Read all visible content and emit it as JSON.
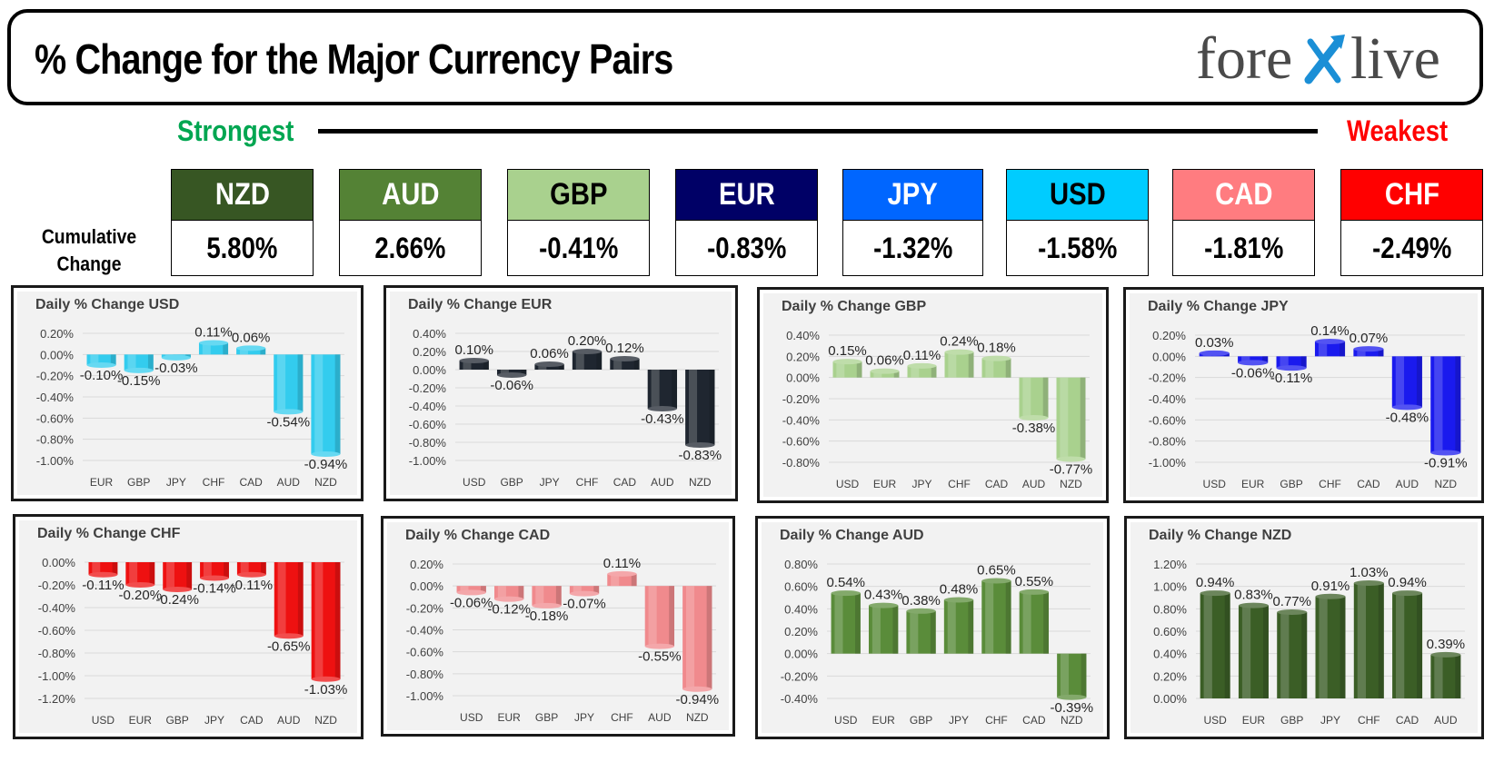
{
  "header": {
    "title": "% Change for the Major Currency Pairs",
    "logo": "forexlive",
    "strongest": "Strongest",
    "weakest": "Weakest",
    "cumulative_label": "Cumulative Change"
  },
  "ranking": [
    {
      "ccy": "NZD",
      "value": "5.80%",
      "color": "#375623",
      "text_color": "#ffffff"
    },
    {
      "ccy": "AUD",
      "value": "2.66%",
      "color": "#548235",
      "text_color": "#ffffff"
    },
    {
      "ccy": "GBP",
      "value": "-0.41%",
      "color": "#a9d18e",
      "text_color": "#000000"
    },
    {
      "ccy": "EUR",
      "value": "-0.83%",
      "color": "#000066",
      "text_color": "#ffffff"
    },
    {
      "ccy": "JPY",
      "value": "-1.32%",
      "color": "#0066ff",
      "text_color": "#ffffff"
    },
    {
      "ccy": "USD",
      "value": "-1.58%",
      "color": "#00ccff",
      "text_color": "#000000"
    },
    {
      "ccy": "CAD",
      "value": "-1.81%",
      "color": "#ff7c80",
      "text_color": "#ffffff"
    },
    {
      "ccy": "CHF",
      "value": "-2.49%",
      "color": "#ff0000",
      "text_color": "#ffffff"
    }
  ],
  "chart_data": [
    {
      "type": "bar",
      "title": "Daily % Change USD",
      "color": "#33ccee",
      "categories": [
        "EUR",
        "GBP",
        "JPY",
        "CHF",
        "CAD",
        "AUD",
        "NZD"
      ],
      "values": [
        -0.1,
        -0.15,
        -0.03,
        0.11,
        0.06,
        -0.54,
        -0.94
      ],
      "labels": [
        "-0.10%",
        "-0.15%",
        "-0.03%",
        "0.11%",
        "0.06%",
        "-0.54%",
        "-0.94%"
      ],
      "ylim": [
        -1.0,
        0.2
      ],
      "yticks": [
        "0.20%",
        "0.00%",
        "-0.20%",
        "-0.40%",
        "-0.60%",
        "-0.80%",
        "-1.00%"
      ]
    },
    {
      "type": "bar",
      "title": "Daily % Change EUR",
      "color": "#1f2630",
      "categories": [
        "USD",
        "GBP",
        "JPY",
        "CHF",
        "CAD",
        "AUD",
        "NZD"
      ],
      "values": [
        0.1,
        -0.06,
        0.06,
        0.2,
        0.12,
        -0.43,
        -0.83
      ],
      "labels": [
        "0.10%",
        "-0.06%",
        "0.06%",
        "0.20%",
        "0.12%",
        "-0.43%",
        "-0.83%"
      ],
      "ylim": [
        -1.0,
        0.4
      ],
      "yticks": [
        "0.40%",
        "0.20%",
        "0.00%",
        "-0.20%",
        "-0.40%",
        "-0.60%",
        "-0.80%",
        "-1.00%"
      ]
    },
    {
      "type": "bar",
      "title": "Daily % Change GBP",
      "color": "#a9d18e",
      "categories": [
        "USD",
        "EUR",
        "JPY",
        "CHF",
        "CAD",
        "AUD",
        "NZD"
      ],
      "values": [
        0.15,
        0.06,
        0.11,
        0.24,
        0.18,
        -0.38,
        -0.77
      ],
      "labels": [
        "0.15%",
        "0.06%",
        "0.11%",
        "0.24%",
        "0.18%",
        "-0.38%",
        "-0.77%"
      ],
      "ylim": [
        -0.8,
        0.4
      ],
      "yticks": [
        "0.40%",
        "0.20%",
        "0.00%",
        "-0.20%",
        "-0.40%",
        "-0.60%",
        "-0.80%"
      ]
    },
    {
      "type": "bar",
      "title": "Daily % Change JPY",
      "color": "#1a1aee",
      "categories": [
        "USD",
        "EUR",
        "GBP",
        "CHF",
        "CAD",
        "AUD",
        "NZD"
      ],
      "values": [
        0.03,
        -0.06,
        -0.11,
        0.14,
        0.07,
        -0.48,
        -0.91
      ],
      "labels": [
        "0.03%",
        "-0.06%",
        "-0.11%",
        "0.14%",
        "0.07%",
        "-0.48%",
        "-0.91%"
      ],
      "ylim": [
        -1.0,
        0.2
      ],
      "yticks": [
        "0.20%",
        "0.00%",
        "-0.20%",
        "-0.40%",
        "-0.60%",
        "-0.80%",
        "-1.00%"
      ]
    },
    {
      "type": "bar",
      "title": "Daily % Change CHF",
      "color": "#ee1111",
      "categories": [
        "USD",
        "EUR",
        "GBP",
        "JPY",
        "CAD",
        "AUD",
        "NZD"
      ],
      "values": [
        -0.11,
        -0.2,
        -0.24,
        -0.14,
        -0.11,
        -0.65,
        -1.03
      ],
      "labels": [
        "-0.11%",
        "-0.20%",
        "-0.24%",
        "-0.14%",
        "-0.11%",
        "-0.65%",
        "-1.03%"
      ],
      "ylim": [
        -1.2,
        0.0
      ],
      "yticks": [
        "0.00%",
        "-0.20%",
        "-0.40%",
        "-0.60%",
        "-0.80%",
        "-1.00%",
        "-1.20%"
      ]
    },
    {
      "type": "bar",
      "title": "Daily % Change CAD",
      "color": "#f08a8d",
      "categories": [
        "USD",
        "EUR",
        "GBP",
        "JPY",
        "CHF",
        "AUD",
        "NZD"
      ],
      "values": [
        -0.06,
        -0.12,
        -0.18,
        -0.07,
        0.11,
        -0.55,
        -0.94
      ],
      "labels": [
        "-0.06%",
        "-0.12%",
        "-0.18%",
        "-0.07%",
        "0.11%",
        "-0.55%",
        "-0.94%"
      ],
      "ylim": [
        -1.0,
        0.2
      ],
      "yticks": [
        "0.20%",
        "0.00%",
        "-0.20%",
        "-0.40%",
        "-0.60%",
        "-0.80%",
        "-1.00%"
      ]
    },
    {
      "type": "bar",
      "title": "Daily % Change AUD",
      "color": "#5a8c3a",
      "categories": [
        "USD",
        "EUR",
        "GBP",
        "JPY",
        "CHF",
        "CAD",
        "NZD"
      ],
      "values": [
        0.54,
        0.43,
        0.38,
        0.48,
        0.65,
        0.55,
        -0.39
      ],
      "labels": [
        "0.54%",
        "0.43%",
        "0.38%",
        "0.48%",
        "0.65%",
        "0.55%",
        "-0.39%"
      ],
      "ylim": [
        -0.4,
        0.8
      ],
      "yticks": [
        "0.80%",
        "0.60%",
        "0.40%",
        "0.20%",
        "0.00%",
        "-0.20%",
        "-0.40%"
      ]
    },
    {
      "type": "bar",
      "title": "Daily % Change NZD",
      "color": "#3b5e26",
      "categories": [
        "USD",
        "EUR",
        "GBP",
        "JPY",
        "CHF",
        "CAD",
        "AUD"
      ],
      "values": [
        0.94,
        0.83,
        0.77,
        0.91,
        1.03,
        0.94,
        0.39
      ],
      "labels": [
        "0.94%",
        "0.83%",
        "0.77%",
        "0.91%",
        "1.03%",
        "0.94%",
        "0.39%"
      ],
      "ylim": [
        0.0,
        1.2
      ],
      "yticks": [
        "1.20%",
        "1.00%",
        "0.80%",
        "0.60%",
        "0.40%",
        "0.20%",
        "0.00%"
      ]
    }
  ]
}
